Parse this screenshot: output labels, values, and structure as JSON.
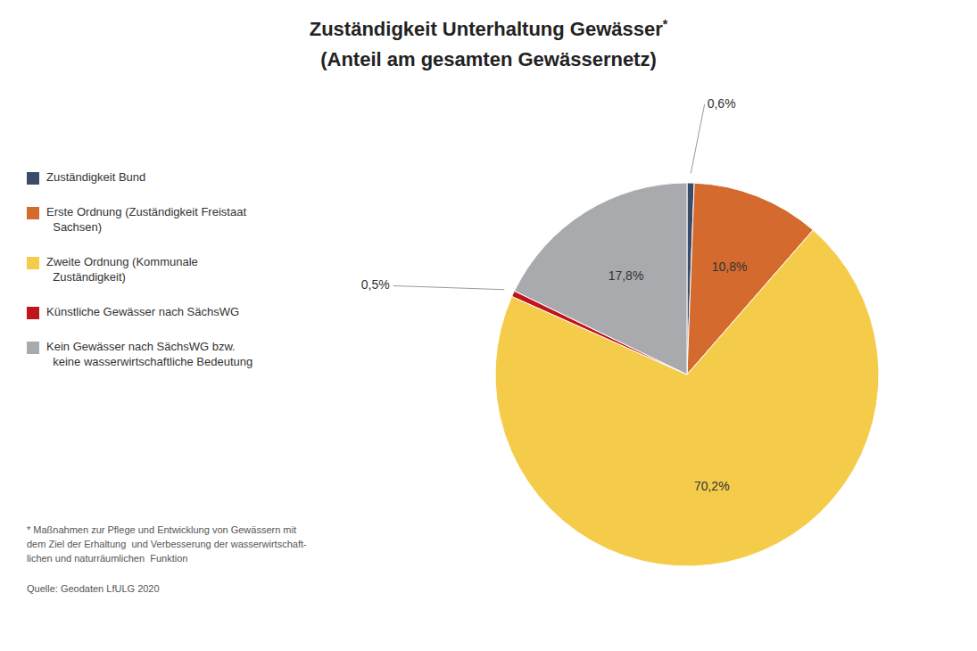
{
  "chart_data": {
    "type": "pie",
    "title": "Zuständigkeit Unterhaltung Gewässer*",
    "subtitle": "(Anteil am gesamten Gewässernetz)",
    "categories": [
      "Zuständigkeit Bund",
      "Erste Ordnung (Zuständigkeit Freistaat\n  Sachsen)",
      "Zweite Ordnung (Kommunale\n  Zuständigkeit)",
      "Künstliche Gewässer nach SächsWG",
      "Kein Gewässer nach SächsWG bzw.\n  keine wasserwirtschaftliche Bedeutung"
    ],
    "values": [
      0.6,
      10.8,
      70.2,
      0.5,
      17.8
    ],
    "value_labels": [
      "0,6%",
      "10,8%",
      "70,2%",
      "0,5%",
      "17,8%"
    ],
    "colors": [
      "#3B4C6B",
      "#D46A2E",
      "#F5CC4A",
      "#C0151A",
      "#A8AAAD"
    ],
    "data_labels": true,
    "legend": "left",
    "annotations": [
      "* Maßnahmen zur Pflege und Entwicklung von Gewässern mit\ndem Ziel der Erhaltung  und Verbesserung der wasserwirtschaft-\nlichen und naturräumlichen  Funktion",
      "Quelle: Geodaten LfULG 2020"
    ]
  }
}
